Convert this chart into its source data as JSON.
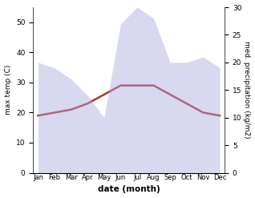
{
  "months": [
    "Jan",
    "Feb",
    "Mar",
    "Apr",
    "May",
    "Jun",
    "Jul",
    "Aug",
    "Sep",
    "Oct",
    "Nov",
    "Dec"
  ],
  "temp": [
    19,
    20,
    21,
    23,
    26,
    29,
    29,
    29,
    26,
    23,
    20,
    19
  ],
  "precip": [
    20,
    19,
    17,
    14,
    10,
    27,
    30,
    28,
    20,
    20,
    21,
    19
  ],
  "temp_color": "#aa3333",
  "precip_fill_color": "#aaaadd",
  "temp_ylim": [
    0,
    55
  ],
  "precip_ylim": [
    0,
    30
  ],
  "temp_yticks": [
    0,
    10,
    20,
    30,
    40,
    50
  ],
  "precip_yticks": [
    0,
    5,
    10,
    15,
    20,
    25,
    30
  ],
  "ylabel_left": "max temp (C)",
  "ylabel_right": "med. precipitation (kg/m2)",
  "xlabel": "date (month)",
  "background_color": "#ffffff"
}
